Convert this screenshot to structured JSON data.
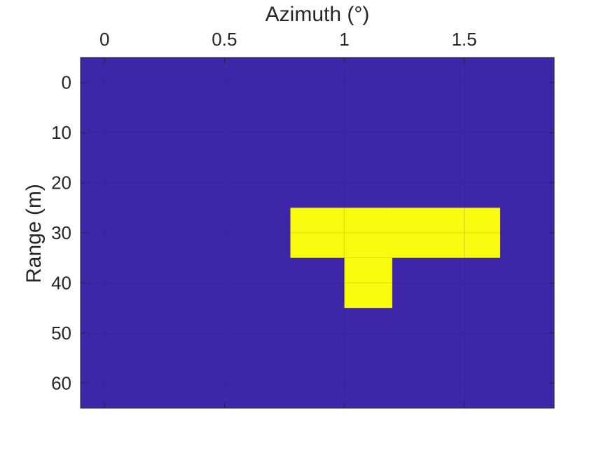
{
  "chart_data": {
    "type": "heatmap",
    "title": "",
    "xlabel": "Azimuth (°)",
    "ylabel": "Range (m)",
    "x_axis_location": "top",
    "y_direction": "reverse",
    "xlim": [
      -0.1,
      1.875
    ],
    "ylim": [
      -5,
      65
    ],
    "xticks": [
      0,
      0.5,
      1,
      1.5
    ],
    "xtick_labels": [
      "0",
      "0.5",
      "1",
      "1.5"
    ],
    "yticks": [
      0,
      10,
      20,
      30,
      40,
      50,
      60
    ],
    "ytick_labels": [
      "0",
      "10",
      "20",
      "30",
      "40",
      "50",
      "60"
    ],
    "grid": true,
    "background_value": 0,
    "background_color": "#3E26A8",
    "highlight_color": "#F9FB0E",
    "cells": [
      {
        "x0": 0.775,
        "x1": 1.0,
        "y0": 25,
        "y1": 35,
        "value": 1
      },
      {
        "x0": 1.0,
        "x1": 1.2,
        "y0": 25,
        "y1": 35,
        "value": 1
      },
      {
        "x0": 1.2,
        "x1": 1.5,
        "y0": 25,
        "y1": 35,
        "value": 1
      },
      {
        "x0": 1.5,
        "x1": 1.65,
        "y0": 25,
        "y1": 35,
        "value": 1
      },
      {
        "x0": 1.0,
        "x1": 1.2,
        "y0": 35,
        "y1": 45,
        "value": 1
      }
    ]
  }
}
